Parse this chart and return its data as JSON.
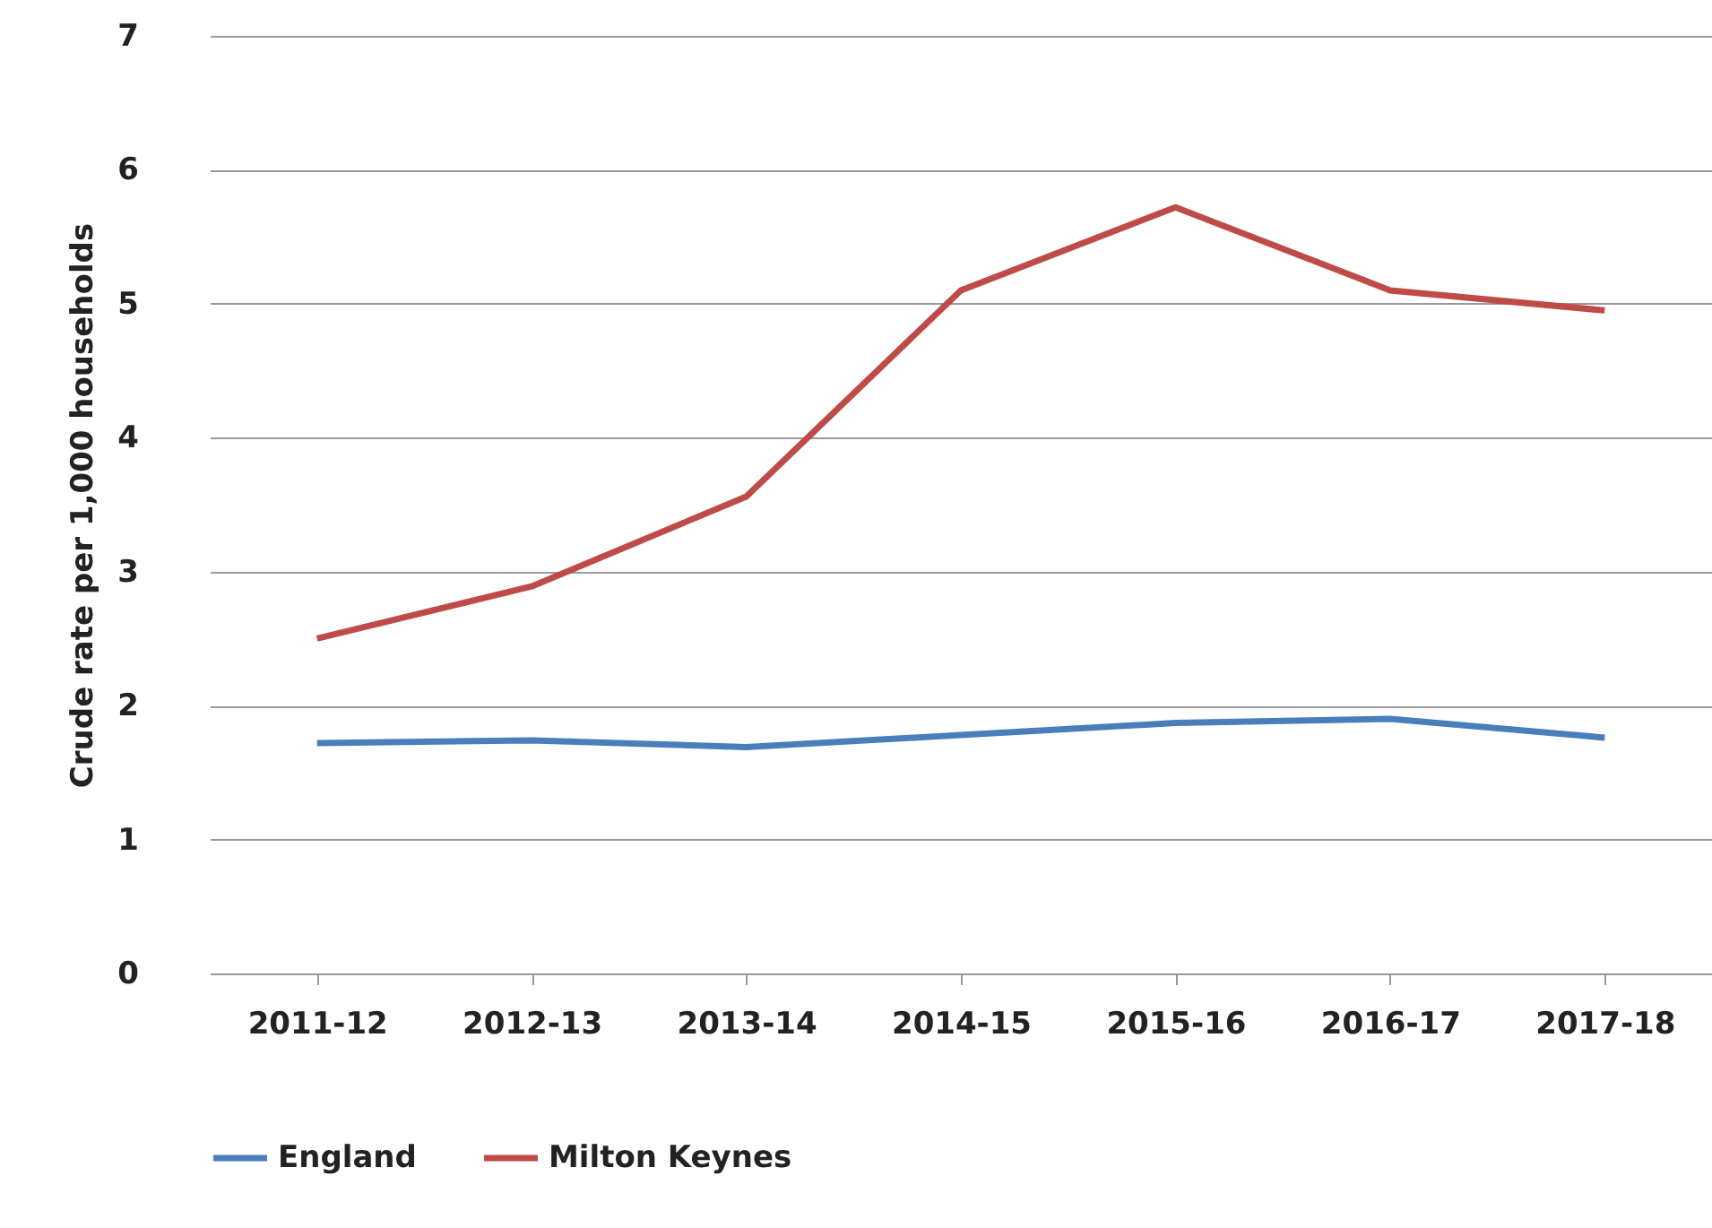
{
  "chart_data": {
    "type": "line",
    "ylabel": "Crude rate per 1,000 households",
    "categories": [
      "2011-12",
      "2012-13",
      "2013-14",
      "2014-15",
      "2015-16",
      "2016-17",
      "2017-18"
    ],
    "series": [
      {
        "name": "England",
        "color": "#4a7ebb",
        "values": [
          1.72,
          1.74,
          1.69,
          1.78,
          1.87,
          1.9,
          1.76
        ]
      },
      {
        "name": "Milton Keynes",
        "color": "#be4b48",
        "values": [
          2.5,
          2.89,
          3.56,
          5.1,
          5.72,
          5.1,
          4.95
        ]
      }
    ],
    "ylim": [
      0,
      7
    ],
    "yticks": [
      0,
      1,
      2,
      3,
      4,
      5,
      6,
      7
    ],
    "grid": "y",
    "legend": "bottom",
    "marker": "none",
    "line_style": "solid"
  }
}
